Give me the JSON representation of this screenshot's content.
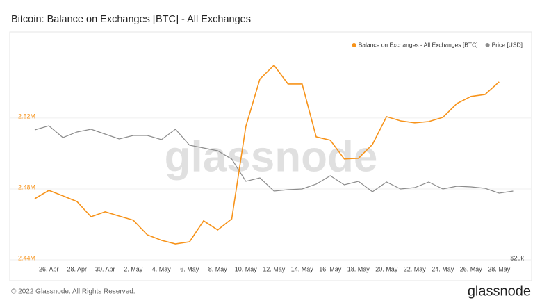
{
  "chart_data": {
    "type": "line",
    "title": "Bitcoin: Balance on Exchanges [BTC] - All Exchanges",
    "watermark": "glassnode",
    "footer": "© 2022 Glassnode. All Rights Reserved.",
    "logo": "glassnode",
    "categories": [
      null,
      "26. Apr",
      null,
      "28. Apr",
      null,
      "30. Apr",
      null,
      "2. May",
      null,
      "4. May",
      null,
      "6. May",
      null,
      "8. May",
      null,
      "10. May",
      null,
      "12. May",
      null,
      "14. May",
      null,
      "16. May",
      null,
      "18. May",
      null,
      "20. May",
      null,
      "22. May",
      null,
      "24. May",
      null,
      "26. May",
      null,
      "28. May",
      null
    ],
    "ylim": [
      2440000,
      2567000
    ],
    "yticks": [
      {
        "value": 2440000,
        "label": "2.44M"
      },
      {
        "value": 2480000,
        "label": "2.48M"
      },
      {
        "value": 2520000,
        "label": "2.52M"
      }
    ],
    "y2lim": [
      20000,
      54650
    ],
    "y2ticks": [
      {
        "value": 20000,
        "label": "$20k"
      }
    ],
    "grid": true,
    "legend": "top-right",
    "series": [
      {
        "name": "Balance on Exchanges - All Exchanges [BTC]",
        "color": "#f7931a",
        "values": [
          2474500,
          2479200,
          2476100,
          2472900,
          2464300,
          2467100,
          2464700,
          2462400,
          2454100,
          2451000,
          2449000,
          2450200,
          2462000,
          2456900,
          2463100,
          2515300,
          2542000,
          2549800,
          2539200,
          2539200,
          2509400,
          2507500,
          2496900,
          2497300,
          2505100,
          2520800,
          2518400,
          2517300,
          2518000,
          2520400,
          2528200,
          2532200,
          2533300,
          2540400,
          null
        ]
      },
      {
        "name": "Price [USD]",
        "color": "#8c8c8c",
        "axis": "y2",
        "values": [
          40000,
          40640,
          38820,
          39680,
          40110,
          39360,
          38610,
          39140,
          39140,
          38500,
          40110,
          37650,
          37220,
          36790,
          35510,
          32080,
          32620,
          30590,
          30800,
          30910,
          31660,
          32940,
          31550,
          32080,
          30480,
          31980,
          30910,
          31120,
          31980,
          30910,
          31340,
          31230,
          31020,
          30270,
          30590
        ]
      }
    ]
  }
}
